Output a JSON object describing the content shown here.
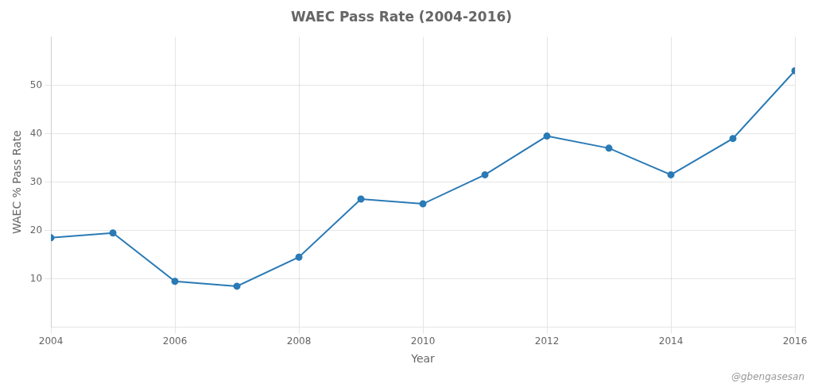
{
  "chart_data": {
    "type": "line",
    "title": "WAEC Pass Rate (2004-2016)",
    "xlabel": "Year",
    "ylabel": "WAEC % Pass Rate",
    "annotations": [
      {
        "text": "@gbengasesan"
      }
    ],
    "x": [
      2004,
      2005,
      2006,
      2007,
      2008,
      2009,
      2010,
      2011,
      2012,
      2013,
      2014,
      2015,
      2016
    ],
    "values": [
      18.5,
      19.5,
      9.5,
      8.5,
      14.5,
      26.5,
      25.5,
      31.5,
      39.5,
      37.0,
      31.5,
      39.0,
      53.0
    ],
    "color": "#2a7ab5",
    "marker": "circle",
    "xlim": [
      2004,
      2016
    ],
    "xticks": [
      2004,
      2006,
      2008,
      2010,
      2012,
      2014,
      2016
    ],
    "ylim": [
      0,
      60
    ],
    "yticks": [
      10,
      20,
      30,
      40,
      50
    ],
    "grid": true
  }
}
